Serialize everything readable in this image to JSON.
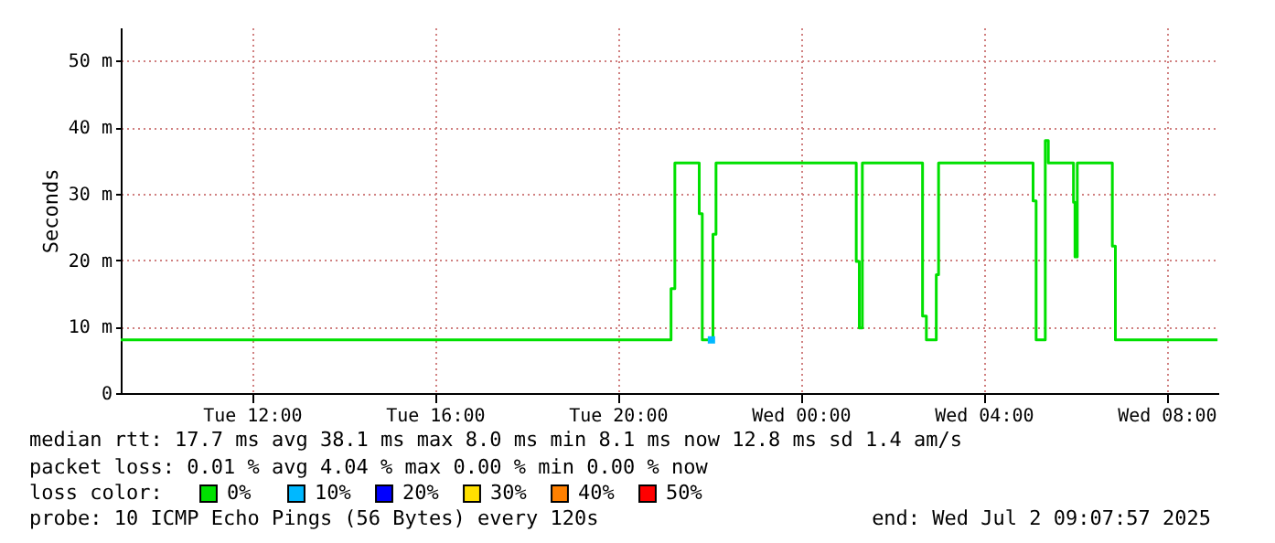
{
  "chart_data": {
    "type": "step",
    "ylabel": "Seconds",
    "xlim": [
      "2025-07-01T09:08",
      "2025-07-02T09:08"
    ],
    "xticks": [
      {
        "value": "2025-07-01T12:00",
        "label": "Tue 12:00"
      },
      {
        "value": "2025-07-01T16:00",
        "label": "Tue 16:00"
      },
      {
        "value": "2025-07-01T20:00",
        "label": "Tue 20:00"
      },
      {
        "value": "2025-07-02T00:00",
        "label": "Wed 00:00"
      },
      {
        "value": "2025-07-02T04:00",
        "label": "Wed 04:00"
      },
      {
        "value": "2025-07-02T08:00",
        "label": "Wed 08:00"
      }
    ],
    "ylim": [
      0,
      55
    ],
    "yticks": [
      0,
      {
        "value": 10,
        "label": "10 m"
      },
      {
        "value": 20,
        "label": "20 m"
      },
      {
        "value": 30,
        "label": "30 m"
      },
      {
        "value": 40,
        "label": "40 m"
      },
      {
        "value": 50,
        "label": "50 m"
      }
    ],
    "grid": true,
    "legend": "bottom",
    "legend_title": "loss color:",
    "series": [
      {
        "name": "0%",
        "color": "#00e000",
        "x": [
          "2025-07-01T09:08",
          "2025-07-01T21:10",
          "2025-07-01T21:15",
          "2025-07-01T21:47",
          "2025-07-01T21:51",
          "2025-07-01T22:05",
          "2025-07-01T22:09",
          "2025-07-02T01:13",
          "2025-07-02T01:17",
          "2025-07-02T01:21",
          "2025-07-02T02:40",
          "2025-07-02T02:45",
          "2025-07-02T02:58",
          "2025-07-02T03:01",
          "2025-07-02T05:05",
          "2025-07-02T05:09",
          "2025-07-02T05:21",
          "2025-07-02T05:25",
          "2025-07-02T05:58",
          "2025-07-02T06:00",
          "2025-07-02T06:03",
          "2025-07-02T06:49",
          "2025-07-02T06:53",
          "2025-07-02T09:07"
        ],
        "values": [
          8.0,
          15.7,
          34.6,
          27.0,
          8.0,
          23.9,
          34.6,
          19.8,
          9.8,
          34.6,
          11.6,
          8.0,
          17.8,
          34.6,
          28.9,
          8.0,
          38.0,
          34.6,
          28.7,
          20.5,
          34.6,
          22.1,
          8.0,
          8.0
        ]
      },
      {
        "name": "10%",
        "color": "#00b8ff",
        "type": "scatter",
        "x": [
          "2025-07-01T22:03"
        ],
        "values": [
          8.0
        ]
      },
      {
        "name": "20%",
        "color": "#0000ff",
        "type": "scatter"
      },
      {
        "name": "30%",
        "color": "#ffe000",
        "type": "scatter"
      },
      {
        "name": "40%",
        "color": "#ff8000",
        "type": "scatter"
      },
      {
        "name": "50%",
        "color": "#ff0000",
        "type": "scatter"
      }
    ],
    "annotations": [
      "median rtt:  17.7 ms avg  38.1 ms max  8.0 ms min  8.1 ms now  12.8 ms sd  1.4   am/s",
      "packet loss: 0.01 % avg  4.04 % max  0.00 % min  0.00 % now",
      "probe:       10 ICMP Echo Pings (56 Bytes) every 120s",
      "end: Wed Jul  2 09:07:57 2025"
    ]
  }
}
